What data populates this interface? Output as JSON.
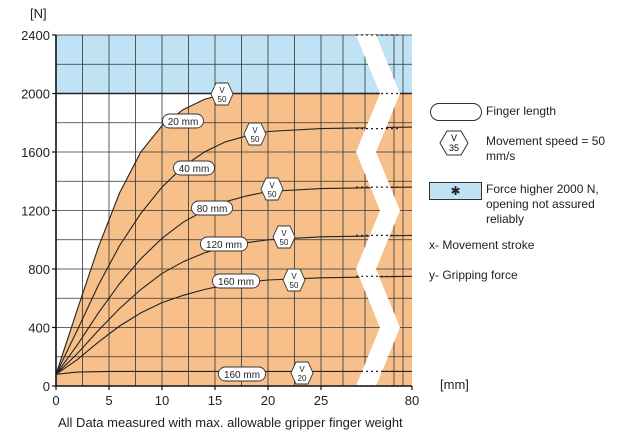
{
  "chart_data": {
    "type": "line",
    "y_unit_label": "[N]",
    "x_unit_label": "[mm]",
    "caption": "All Data measured with max. allowable gripper finger weight",
    "x_ticks": [
      "0",
      "5",
      "10",
      "15",
      "20",
      "25",
      "80"
    ],
    "y_ticks": [
      "0",
      "400",
      "800",
      "1200",
      "1600",
      "2000",
      "2400"
    ],
    "ylim": [
      0,
      2400
    ],
    "xlim": [
      0,
      80
    ],
    "axis_break": "between 25 and 80",
    "grid": true,
    "shaded_region_color": "#f7c08a",
    "high_force_region": {
      "from": 2000,
      "to": 2400,
      "color": "#bfe3f4"
    },
    "series": [
      {
        "label": "20 mm",
        "speed": [
          "V",
          "50"
        ],
        "x": [
          0,
          2,
          4,
          6,
          8,
          10,
          12,
          14,
          16,
          18,
          20,
          25,
          80
        ],
        "y": [
          80,
          520,
          950,
          1320,
          1600,
          1780,
          1890,
          1960,
          2000,
          2000,
          2000,
          2000,
          2000
        ]
      },
      {
        "label": "40 mm",
        "speed": [
          "V",
          "50"
        ],
        "x": [
          0,
          2,
          4,
          6,
          8,
          10,
          12,
          14,
          16,
          18,
          20,
          25,
          80
        ],
        "y": [
          80,
          380,
          690,
          960,
          1180,
          1360,
          1500,
          1600,
          1670,
          1710,
          1740,
          1760,
          1770
        ]
      },
      {
        "label": "80 mm",
        "speed": [
          "V",
          "50"
        ],
        "x": [
          0,
          2,
          4,
          6,
          8,
          10,
          12,
          14,
          16,
          18,
          20,
          25,
          80
        ],
        "y": [
          80,
          280,
          500,
          700,
          870,
          1010,
          1120,
          1200,
          1260,
          1300,
          1330,
          1350,
          1360
        ]
      },
      {
        "label": "120 mm",
        "speed": [
          "V",
          "50"
        ],
        "x": [
          0,
          2,
          4,
          6,
          8,
          10,
          12,
          14,
          16,
          18,
          20,
          25,
          80
        ],
        "y": [
          80,
          220,
          380,
          530,
          660,
          770,
          850,
          910,
          950,
          980,
          1000,
          1020,
          1030
        ]
      },
      {
        "label": "160 mm",
        "speed": [
          "V",
          "50"
        ],
        "x": [
          0,
          2,
          4,
          6,
          8,
          10,
          12,
          14,
          16,
          18,
          20,
          25,
          80
        ],
        "y": [
          80,
          180,
          300,
          410,
          500,
          570,
          620,
          660,
          690,
          710,
          725,
          740,
          750
        ]
      },
      {
        "label": "160 mm",
        "speed": [
          "V",
          "20"
        ],
        "x": [
          0,
          2,
          5,
          10,
          15,
          20,
          25,
          80
        ],
        "y": [
          80,
          95,
          100,
          100,
          100,
          100,
          100,
          100
        ]
      }
    ],
    "legend": {
      "finger_length": "Finger length",
      "speed_badge": [
        "V",
        "35"
      ],
      "movement_speed": "Movement speed = 50 mm/s",
      "force_higher_symbol": "✱",
      "force_higher": "Force higher 2000 N, opening not assured reliably",
      "x_desc": "x- Movement stroke",
      "y_desc": "y- Gripping force"
    }
  }
}
